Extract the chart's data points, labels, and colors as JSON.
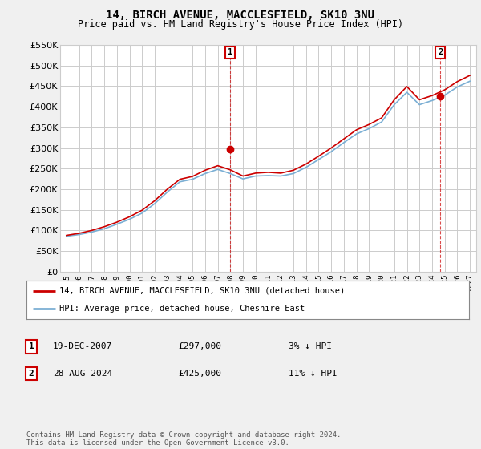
{
  "title": "14, BIRCH AVENUE, MACCLESFIELD, SK10 3NU",
  "subtitle": "Price paid vs. HM Land Registry's House Price Index (HPI)",
  "legend_line1": "14, BIRCH AVENUE, MACCLESFIELD, SK10 3NU (detached house)",
  "legend_line2": "HPI: Average price, detached house, Cheshire East",
  "annotation1_label": "1",
  "annotation1_date": "19-DEC-2007",
  "annotation1_price": "£297,000",
  "annotation1_hpi": "3% ↓ HPI",
  "annotation2_label": "2",
  "annotation2_date": "28-AUG-2024",
  "annotation2_price": "£425,000",
  "annotation2_hpi": "11% ↓ HPI",
  "footer": "Contains HM Land Registry data © Crown copyright and database right 2024.\nThis data is licensed under the Open Government Licence v3.0.",
  "price_color": "#cc0000",
  "hpi_color": "#7bafd4",
  "background_color": "#f0f0f0",
  "plot_background": "#ffffff",
  "grid_color": "#cccccc",
  "ylim": [
    0,
    550000
  ],
  "yticks": [
    0,
    50000,
    100000,
    150000,
    200000,
    250000,
    300000,
    350000,
    400000,
    450000,
    500000,
    550000
  ],
  "years_hpi": [
    1995,
    1996,
    1997,
    1998,
    1999,
    2000,
    2001,
    2002,
    2003,
    2004,
    2005,
    2006,
    2007,
    2008,
    2009,
    2010,
    2011,
    2012,
    2013,
    2014,
    2015,
    2016,
    2017,
    2018,
    2019,
    2020,
    2021,
    2022,
    2023,
    2024,
    2025,
    2026,
    2027
  ],
  "hpi_values": [
    86000,
    90000,
    96000,
    104000,
    115000,
    127000,
    142000,
    165000,
    193000,
    218000,
    224000,
    238000,
    248000,
    238000,
    225000,
    232000,
    233000,
    232000,
    238000,
    253000,
    272000,
    291000,
    313000,
    334000,
    347000,
    363000,
    405000,
    435000,
    405000,
    415000,
    428000,
    448000,
    462000
  ],
  "price_values": [
    88000,
    93000,
    100000,
    109000,
    120000,
    133000,
    149000,
    172000,
    200000,
    224000,
    231000,
    246000,
    257000,
    247000,
    232000,
    239000,
    241000,
    239000,
    246000,
    261000,
    280000,
    300000,
    322000,
    344000,
    357000,
    373000,
    417000,
    449000,
    417000,
    427000,
    441000,
    461000,
    476000
  ],
  "sale1_x": 2007.97,
  "sale1_y": 297000,
  "sale2_x": 2024.65,
  "sale2_y": 425000,
  "xtick_years": [
    1995,
    1996,
    1997,
    1998,
    1999,
    2000,
    2001,
    2002,
    2003,
    2004,
    2005,
    2006,
    2007,
    2008,
    2009,
    2010,
    2011,
    2012,
    2013,
    2014,
    2015,
    2016,
    2017,
    2018,
    2019,
    2020,
    2021,
    2022,
    2023,
    2024,
    2025,
    2026,
    2027
  ]
}
